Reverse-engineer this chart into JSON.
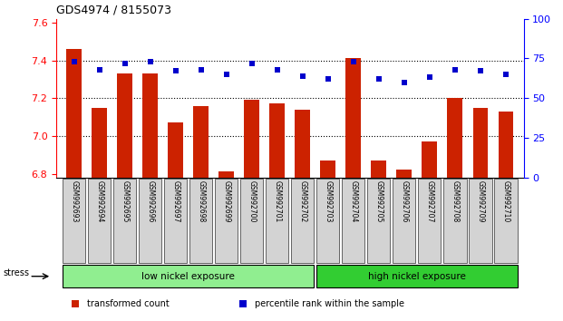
{
  "title": "GDS4974 / 8155073",
  "samples": [
    "GSM992693",
    "GSM992694",
    "GSM992695",
    "GSM992696",
    "GSM992697",
    "GSM992698",
    "GSM992699",
    "GSM992700",
    "GSM992701",
    "GSM992702",
    "GSM992703",
    "GSM992704",
    "GSM992705",
    "GSM992706",
    "GSM992707",
    "GSM992708",
    "GSM992709",
    "GSM992710"
  ],
  "transformed_count": [
    7.46,
    7.15,
    7.33,
    7.33,
    7.07,
    7.16,
    6.81,
    7.19,
    7.17,
    7.14,
    6.87,
    7.41,
    6.87,
    6.82,
    6.97,
    7.2,
    7.15,
    7.13
  ],
  "percentile_rank": [
    73,
    68,
    72,
    73,
    67,
    68,
    65,
    72,
    68,
    64,
    62,
    73,
    62,
    60,
    63,
    68,
    67,
    65
  ],
  "group_labels": [
    "low nickel exposure",
    "high nickel exposure"
  ],
  "low_nickel_count": 10,
  "high_nickel_count": 8,
  "group_colors": [
    "#90ee90",
    "#32cd32"
  ],
  "bar_color": "#cc2200",
  "dot_color": "#0000cc",
  "ylim_left": [
    6.78,
    7.62
  ],
  "ylim_right": [
    0,
    100
  ],
  "yticks_left": [
    6.8,
    7.0,
    7.2,
    7.4,
    7.6
  ],
  "yticks_right": [
    0,
    25,
    50,
    75,
    100
  ],
  "stress_label": "stress",
  "legend_items": [
    "transformed count",
    "percentile rank within the sample"
  ]
}
